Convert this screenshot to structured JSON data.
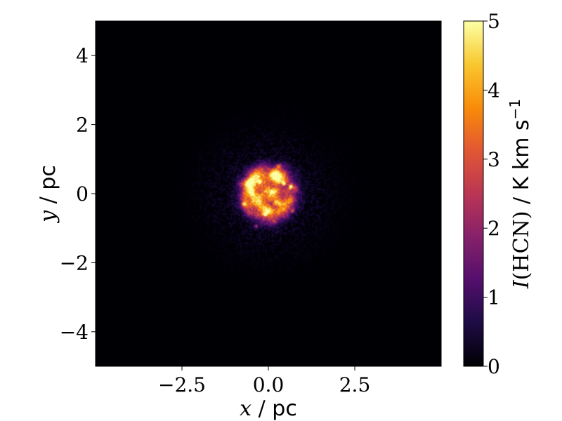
{
  "chart_data": {
    "type": "heatmap",
    "description_of_field": "HCN integrated intensity map, central clumpy emission near origin",
    "xlim": [
      -5,
      5
    ],
    "ylim": [
      -5,
      5
    ],
    "xticks": [
      -2.5,
      0.0,
      2.5
    ],
    "xtick_labels": [
      "−2.5",
      "0.0",
      "2.5"
    ],
    "yticks": [
      -4,
      -2,
      0,
      2,
      4
    ],
    "ytick_labels": [
      "−4",
      "−2",
      "0",
      "2",
      "4"
    ],
    "xlabel": {
      "var": "x",
      "unit": "pc"
    },
    "ylabel": {
      "var": "y",
      "unit": "pc"
    },
    "colorbar": {
      "colormap": "inferno",
      "range": [
        0,
        5
      ],
      "ticks": [
        0,
        1,
        2,
        3,
        4,
        5
      ],
      "tick_labels": [
        "0",
        "1",
        "2",
        "3",
        "4",
        "5"
      ],
      "label_var": "I",
      "label_arg": "(HCN)",
      "label_unit": "K km s",
      "label_exp": "−1"
    },
    "emission": {
      "center": [
        0.0,
        0.0
      ],
      "core_radius_pc": 0.8,
      "diffuse_radius_pc": 1.7,
      "peaks": [
        {
          "x": 0.65,
          "y": 0.2,
          "value": 5
        },
        {
          "x": 0.45,
          "y": 0.3,
          "value": 4.5
        },
        {
          "x": -0.25,
          "y": 0.35,
          "value": 4.8
        },
        {
          "x": -0.5,
          "y": 0.4,
          "value": 3.8
        },
        {
          "x": -0.1,
          "y": -0.6,
          "value": 3.5
        },
        {
          "x": 0.1,
          "y": 0.05,
          "value": 3.0
        },
        {
          "x": -0.7,
          "y": -0.3,
          "value": 2.8
        },
        {
          "x": 0.7,
          "y": -0.5,
          "value": 2.6
        },
        {
          "x": -0.35,
          "y": -0.95,
          "value": 2.4
        },
        {
          "x": 0.3,
          "y": 0.8,
          "value": 2.2
        }
      ]
    }
  }
}
